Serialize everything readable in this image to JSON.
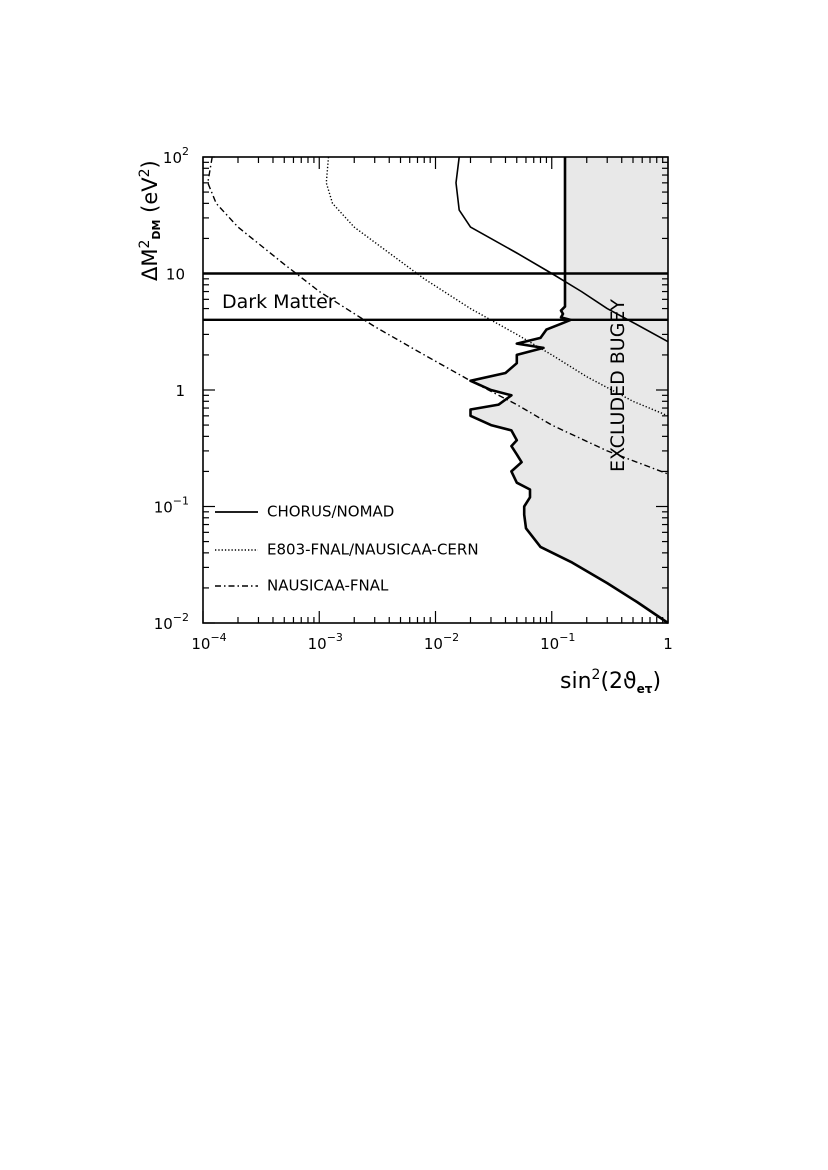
{
  "chart_data": {
    "type": "line",
    "xscale": "log",
    "yscale": "log",
    "xlim": [
      0.0001,
      1
    ],
    "ylim": [
      0.01,
      100
    ],
    "xlabel": "sin²(2ϑ_eτ)",
    "ylabel": "ΔM²_DM (eV²)",
    "x_ticks": [
      {
        "value": 0.0001,
        "base": "10",
        "exp": "−4"
      },
      {
        "value": 0.001,
        "base": "10",
        "exp": "−3"
      },
      {
        "value": 0.01,
        "base": "10",
        "exp": "−2"
      },
      {
        "value": 0.1,
        "base": "10",
        "exp": "−1"
      },
      {
        "value": 1,
        "base": "1",
        "exp": ""
      }
    ],
    "y_ticks": [
      {
        "value": 0.01,
        "base": "10",
        "exp": "−2"
      },
      {
        "value": 0.1,
        "base": "10",
        "exp": "−1"
      },
      {
        "value": 1,
        "base": "1",
        "exp": ""
      },
      {
        "value": 10,
        "base": "10",
        "exp": ""
      },
      {
        "value": 100,
        "base": "10",
        "exp": "2"
      }
    ],
    "annotations": {
      "dark_matter": "Dark Matter",
      "bugey": "EXCLUDED BUGEY"
    },
    "dark_matter_band": [
      4,
      10
    ],
    "bugey_line_x": 0.13,
    "series": [
      {
        "name": "CHORUS/NOMAD",
        "style": "solid",
        "points": [
          [
            0.016,
            100
          ],
          [
            0.015,
            60
          ],
          [
            0.016,
            35
          ],
          [
            0.02,
            25
          ],
          [
            0.05,
            15
          ],
          [
            0.1,
            10
          ],
          [
            0.18,
            7
          ],
          [
            0.3,
            5
          ],
          [
            0.5,
            3.8
          ],
          [
            1,
            2.6
          ]
        ]
      },
      {
        "name": "E803-FNAL/NAUSICAA-CERN",
        "style": "dotted",
        "points": [
          [
            0.0012,
            100
          ],
          [
            0.00115,
            60
          ],
          [
            0.0013,
            40
          ],
          [
            0.002,
            25
          ],
          [
            0.004,
            15
          ],
          [
            0.008,
            9
          ],
          [
            0.02,
            5
          ],
          [
            0.05,
            3
          ],
          [
            0.1,
            2
          ],
          [
            0.2,
            1.3
          ],
          [
            0.5,
            0.8
          ],
          [
            1,
            0.6
          ]
        ]
      },
      {
        "name": "NAUSICAA-FNAL",
        "style": "dashdot",
        "points": [
          [
            0.00012,
            100
          ],
          [
            0.00011,
            60
          ],
          [
            0.00013,
            40
          ],
          [
            0.0002,
            25
          ],
          [
            0.0005,
            12
          ],
          [
            0.001,
            7
          ],
          [
            0.003,
            3.5
          ],
          [
            0.008,
            2
          ],
          [
            0.02,
            1.2
          ],
          [
            0.05,
            0.75
          ],
          [
            0.1,
            0.5
          ],
          [
            0.3,
            0.3
          ],
          [
            1,
            0.19
          ]
        ]
      }
    ],
    "exclusion_boundary": [
      [
        1,
        0.01
      ],
      [
        0.55,
        0.015
      ],
      [
        0.3,
        0.022
      ],
      [
        0.15,
        0.033
      ],
      [
        0.08,
        0.045
      ],
      [
        0.06,
        0.065
      ],
      [
        0.058,
        0.085
      ],
      [
        0.058,
        0.1
      ],
      [
        0.065,
        0.12
      ],
      [
        0.065,
        0.14
      ],
      [
        0.05,
        0.16
      ],
      [
        0.045,
        0.2
      ],
      [
        0.055,
        0.24
      ],
      [
        0.05,
        0.28
      ],
      [
        0.045,
        0.33
      ],
      [
        0.05,
        0.37
      ],
      [
        0.045,
        0.45
      ],
      [
        0.03,
        0.5
      ],
      [
        0.02,
        0.6
      ],
      [
        0.02,
        0.68
      ],
      [
        0.035,
        0.75
      ],
      [
        0.045,
        0.9
      ],
      [
        0.03,
        1
      ],
      [
        0.02,
        1.2
      ],
      [
        0.04,
        1.4
      ],
      [
        0.05,
        1.7
      ],
      [
        0.05,
        2
      ],
      [
        0.085,
        2.3
      ],
      [
        0.05,
        2.5
      ],
      [
        0.08,
        2.8
      ],
      [
        0.09,
        3.3
      ],
      [
        0.12,
        3.7
      ],
      [
        0.145,
        4
      ],
      [
        0.12,
        4.2
      ],
      [
        0.125,
        4.5
      ],
      [
        0.12,
        4.8
      ],
      [
        0.13,
        5.2
      ],
      [
        0.13,
        100
      ],
      [
        1,
        100
      ]
    ]
  }
}
